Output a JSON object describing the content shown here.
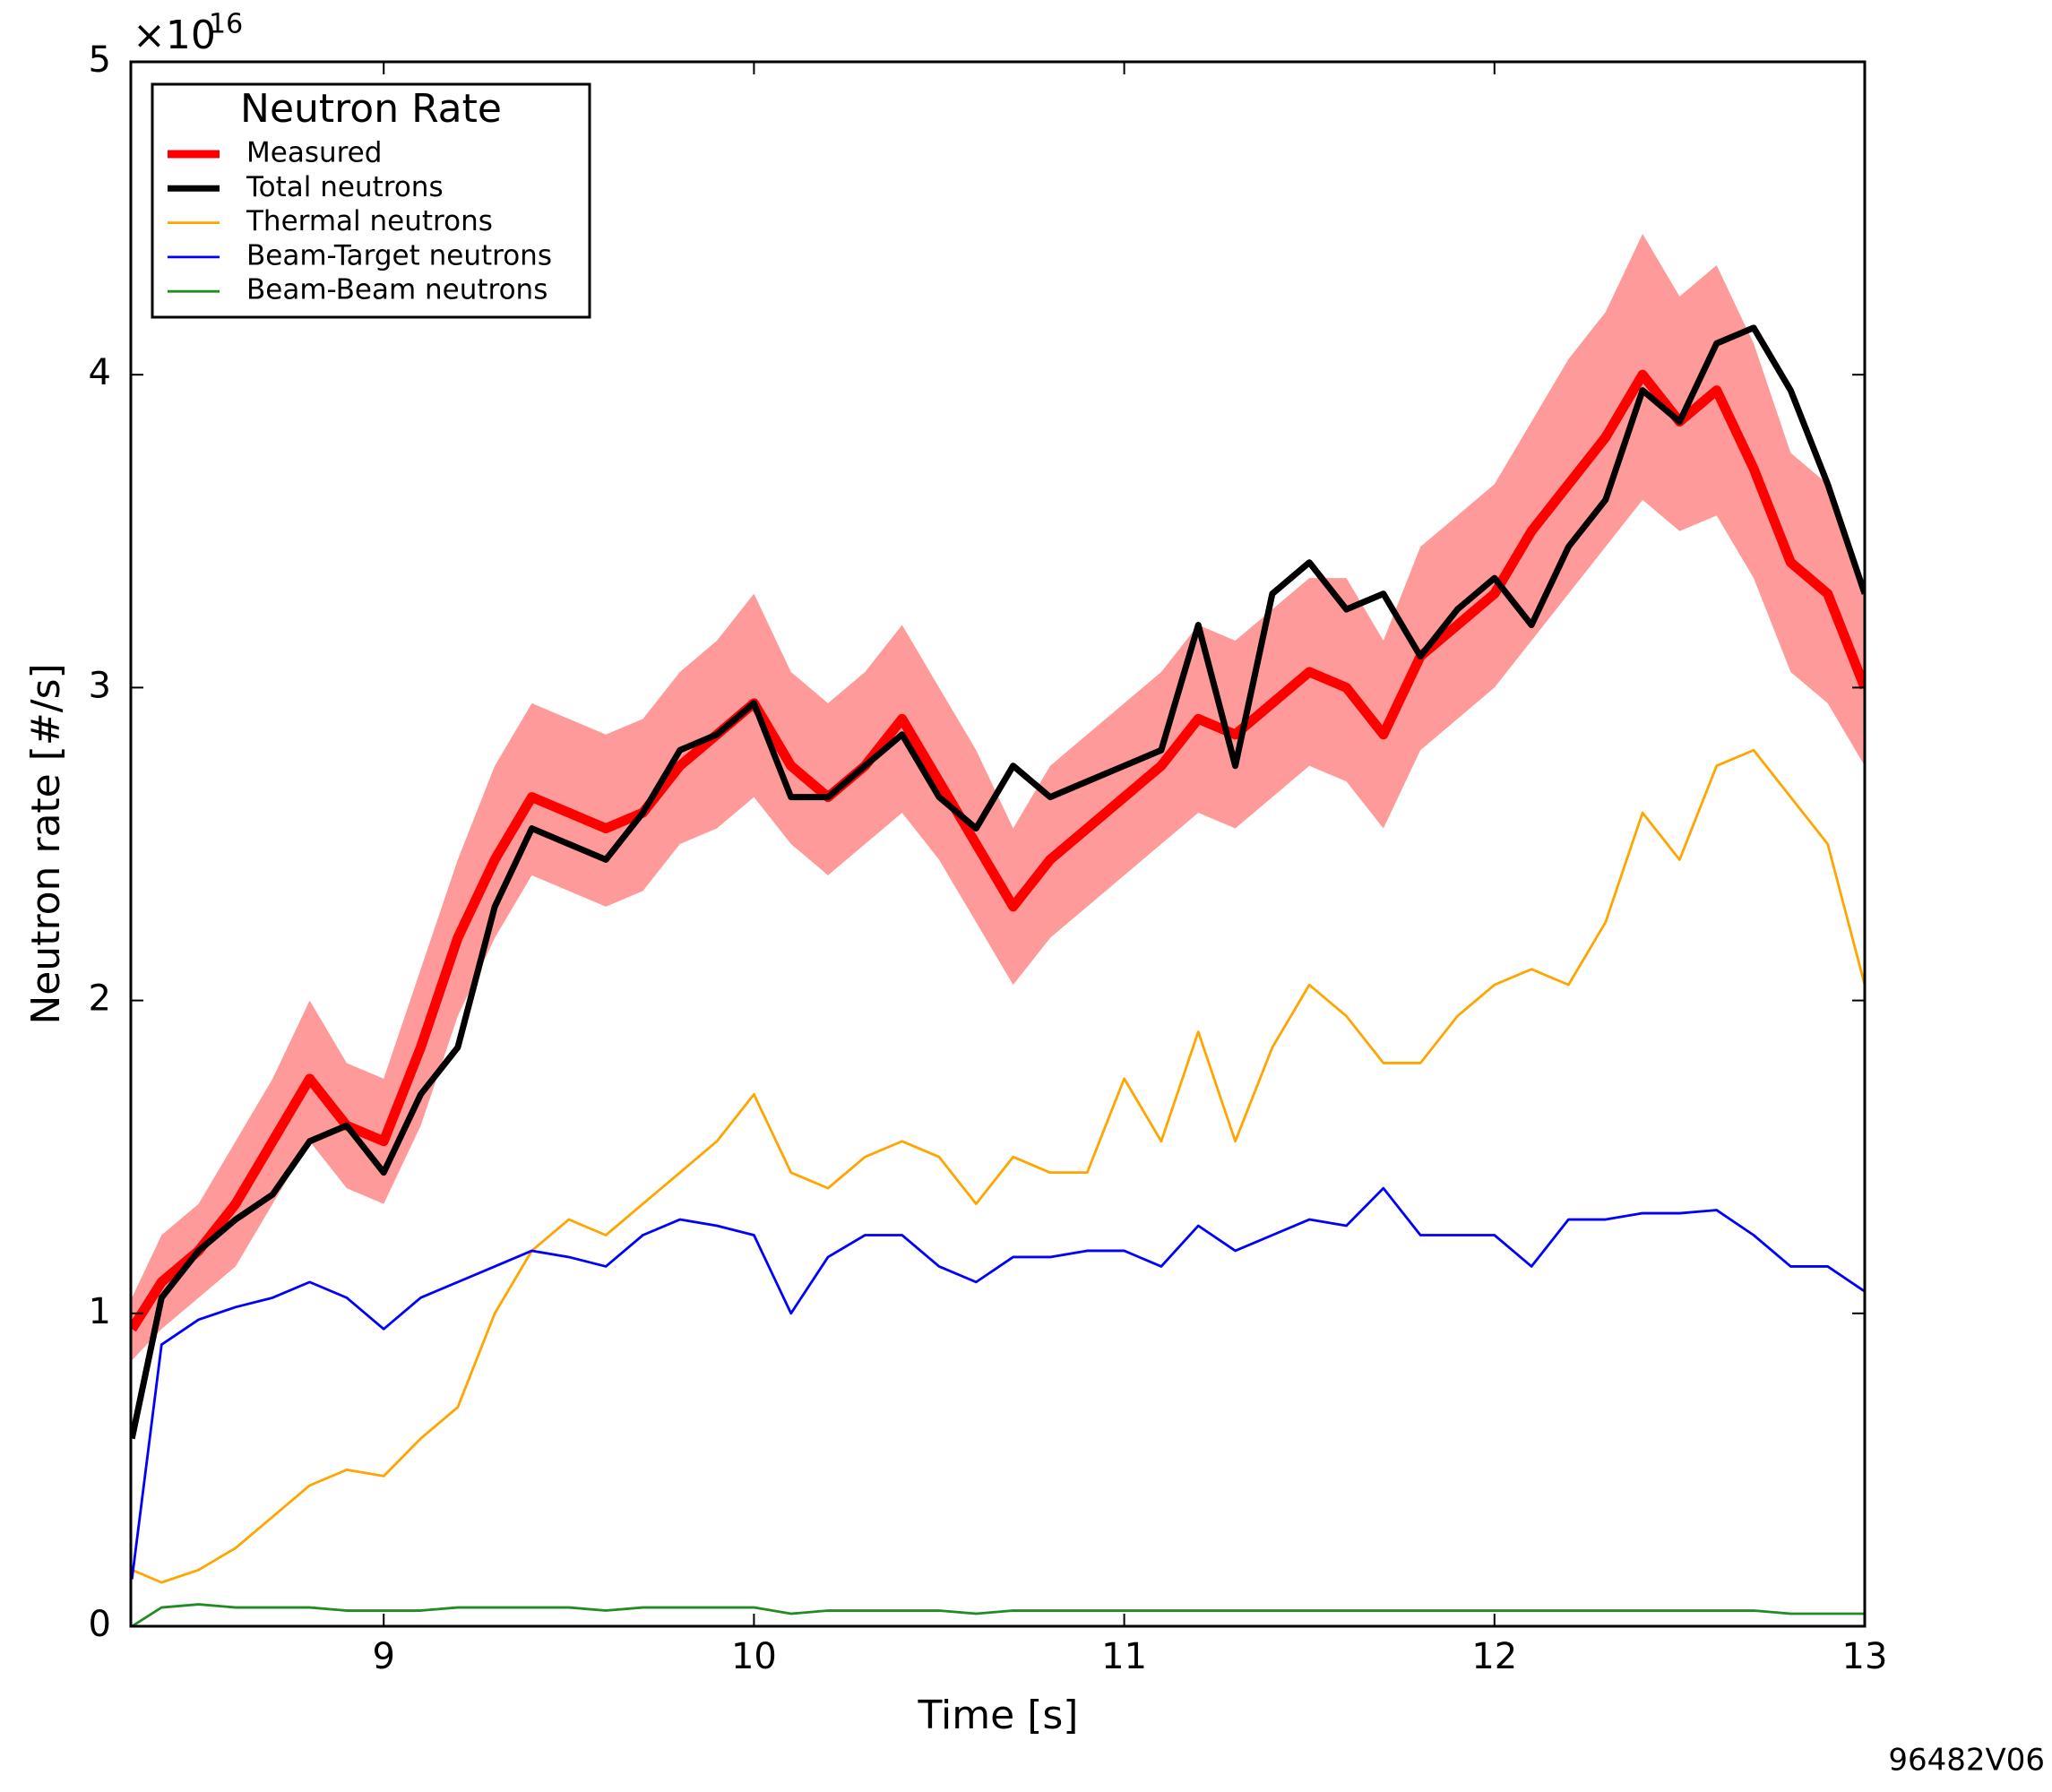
{
  "chart_data": {
    "type": "line",
    "xlabel": "Time [s]",
    "ylabel": "Neutron rate [#/s]",
    "y_multiplier": "×10",
    "y_multiplier_exponent": "16",
    "figure_id": "96482V06",
    "legend_title": "Neutron Rate",
    "legend": "upper left",
    "xlim": [
      8.317,
      13
    ],
    "xticks": [
      9,
      10,
      11,
      12,
      13
    ],
    "ylim": [
      0,
      5
    ],
    "yticks": [
      0,
      1,
      2,
      3,
      4,
      5
    ],
    "x": [
      8.32,
      8.4,
      8.5,
      8.6,
      8.7,
      8.8,
      8.9,
      9.0,
      9.1,
      9.2,
      9.3,
      9.4,
      9.5,
      9.6,
      9.7,
      9.8,
      9.9,
      10.0,
      10.1,
      10.2,
      10.3,
      10.4,
      10.5,
      10.6,
      10.7,
      10.8,
      10.9,
      11.0,
      11.1,
      11.2,
      11.3,
      11.4,
      11.5,
      11.6,
      11.7,
      11.8,
      11.9,
      12.0,
      12.1,
      12.2,
      12.3,
      12.4,
      12.5,
      12.6,
      12.7,
      12.8,
      12.9,
      13.0
    ],
    "series": [
      {
        "name": "Measured",
        "color": "#ff0000",
        "band_color": "#ff9a9a",
        "values": [
          0.95,
          1.1,
          1.2,
          1.35,
          1.55,
          1.75,
          1.6,
          1.55,
          1.85,
          2.2,
          2.45,
          2.65,
          2.6,
          2.55,
          2.6,
          2.75,
          2.85,
          2.95,
          2.75,
          2.65,
          2.75,
          2.9,
          2.7,
          2.5,
          2.3,
          2.45,
          2.55,
          2.65,
          2.75,
          2.9,
          2.85,
          2.95,
          3.05,
          3.0,
          2.85,
          3.1,
          3.2,
          3.3,
          3.5,
          3.65,
          3.8,
          4.0,
          3.85,
          3.95,
          3.7,
          3.4,
          3.3,
          3.0
        ],
        "lower": [
          0.85,
          0.95,
          1.05,
          1.15,
          1.35,
          1.55,
          1.4,
          1.35,
          1.6,
          1.95,
          2.2,
          2.4,
          2.35,
          2.3,
          2.35,
          2.5,
          2.55,
          2.65,
          2.5,
          2.4,
          2.5,
          2.6,
          2.45,
          2.25,
          2.05,
          2.2,
          2.3,
          2.4,
          2.5,
          2.6,
          2.55,
          2.65,
          2.75,
          2.7,
          2.55,
          2.8,
          2.9,
          3.0,
          3.15,
          3.3,
          3.45,
          3.6,
          3.5,
          3.55,
          3.35,
          3.05,
          2.95,
          2.75
        ],
        "upper": [
          1.05,
          1.25,
          1.35,
          1.55,
          1.75,
          2.0,
          1.8,
          1.75,
          2.1,
          2.45,
          2.75,
          2.95,
          2.9,
          2.85,
          2.9,
          3.05,
          3.15,
          3.3,
          3.05,
          2.95,
          3.05,
          3.2,
          3.0,
          2.8,
          2.55,
          2.75,
          2.85,
          2.95,
          3.05,
          3.2,
          3.15,
          3.25,
          3.35,
          3.35,
          3.15,
          3.45,
          3.55,
          3.65,
          3.85,
          4.05,
          4.2,
          4.45,
          4.25,
          4.35,
          4.1,
          3.75,
          3.65,
          3.3
        ]
      },
      {
        "name": "Total neutrons",
        "color": "#000000",
        "values": [
          0.6,
          1.05,
          1.2,
          1.3,
          1.38,
          1.55,
          1.6,
          1.45,
          1.7,
          1.85,
          2.3,
          2.55,
          2.5,
          2.45,
          2.6,
          2.8,
          2.85,
          2.95,
          2.65,
          2.65,
          2.75,
          2.85,
          2.65,
          2.55,
          2.75,
          2.65,
          2.7,
          2.75,
          2.8,
          3.2,
          2.75,
          3.3,
          3.4,
          3.25,
          3.3,
          3.1,
          3.25,
          3.35,
          3.2,
          3.45,
          3.6,
          3.95,
          3.85,
          4.1,
          4.15,
          3.95,
          3.65,
          3.3
        ]
      },
      {
        "name": "Thermal neutrons",
        "color": "#ffa500",
        "values": [
          0.18,
          0.14,
          0.18,
          0.25,
          0.35,
          0.45,
          0.5,
          0.48,
          0.6,
          0.7,
          1.0,
          1.2,
          1.3,
          1.25,
          1.35,
          1.45,
          1.55,
          1.7,
          1.45,
          1.4,
          1.5,
          1.55,
          1.5,
          1.35,
          1.5,
          1.45,
          1.45,
          1.75,
          1.55,
          1.9,
          1.55,
          1.85,
          2.05,
          1.95,
          1.8,
          1.8,
          1.95,
          2.05,
          2.1,
          2.05,
          2.25,
          2.6,
          2.45,
          2.75,
          2.8,
          2.65,
          2.5,
          2.05
        ]
      },
      {
        "name": "Beam-Target neutrons",
        "color": "#0000ff",
        "values": [
          0.15,
          0.9,
          0.98,
          1.02,
          1.05,
          1.1,
          1.05,
          0.95,
          1.05,
          1.1,
          1.15,
          1.2,
          1.18,
          1.15,
          1.25,
          1.3,
          1.28,
          1.25,
          1.0,
          1.18,
          1.25,
          1.25,
          1.15,
          1.1,
          1.18,
          1.18,
          1.2,
          1.2,
          1.15,
          1.28,
          1.2,
          1.25,
          1.3,
          1.28,
          1.4,
          1.25,
          1.25,
          1.25,
          1.15,
          1.3,
          1.3,
          1.32,
          1.32,
          1.33,
          1.25,
          1.15,
          1.15,
          1.07
        ]
      },
      {
        "name": "Beam-Beam neutrons",
        "color": "#228b22",
        "values": [
          0.0,
          0.06,
          0.07,
          0.06,
          0.06,
          0.06,
          0.05,
          0.05,
          0.05,
          0.06,
          0.06,
          0.06,
          0.06,
          0.05,
          0.06,
          0.06,
          0.06,
          0.06,
          0.04,
          0.05,
          0.05,
          0.05,
          0.05,
          0.04,
          0.05,
          0.05,
          0.05,
          0.05,
          0.05,
          0.05,
          0.05,
          0.05,
          0.05,
          0.05,
          0.05,
          0.05,
          0.05,
          0.05,
          0.05,
          0.05,
          0.05,
          0.05,
          0.05,
          0.05,
          0.05,
          0.04,
          0.04,
          0.04
        ]
      }
    ]
  }
}
